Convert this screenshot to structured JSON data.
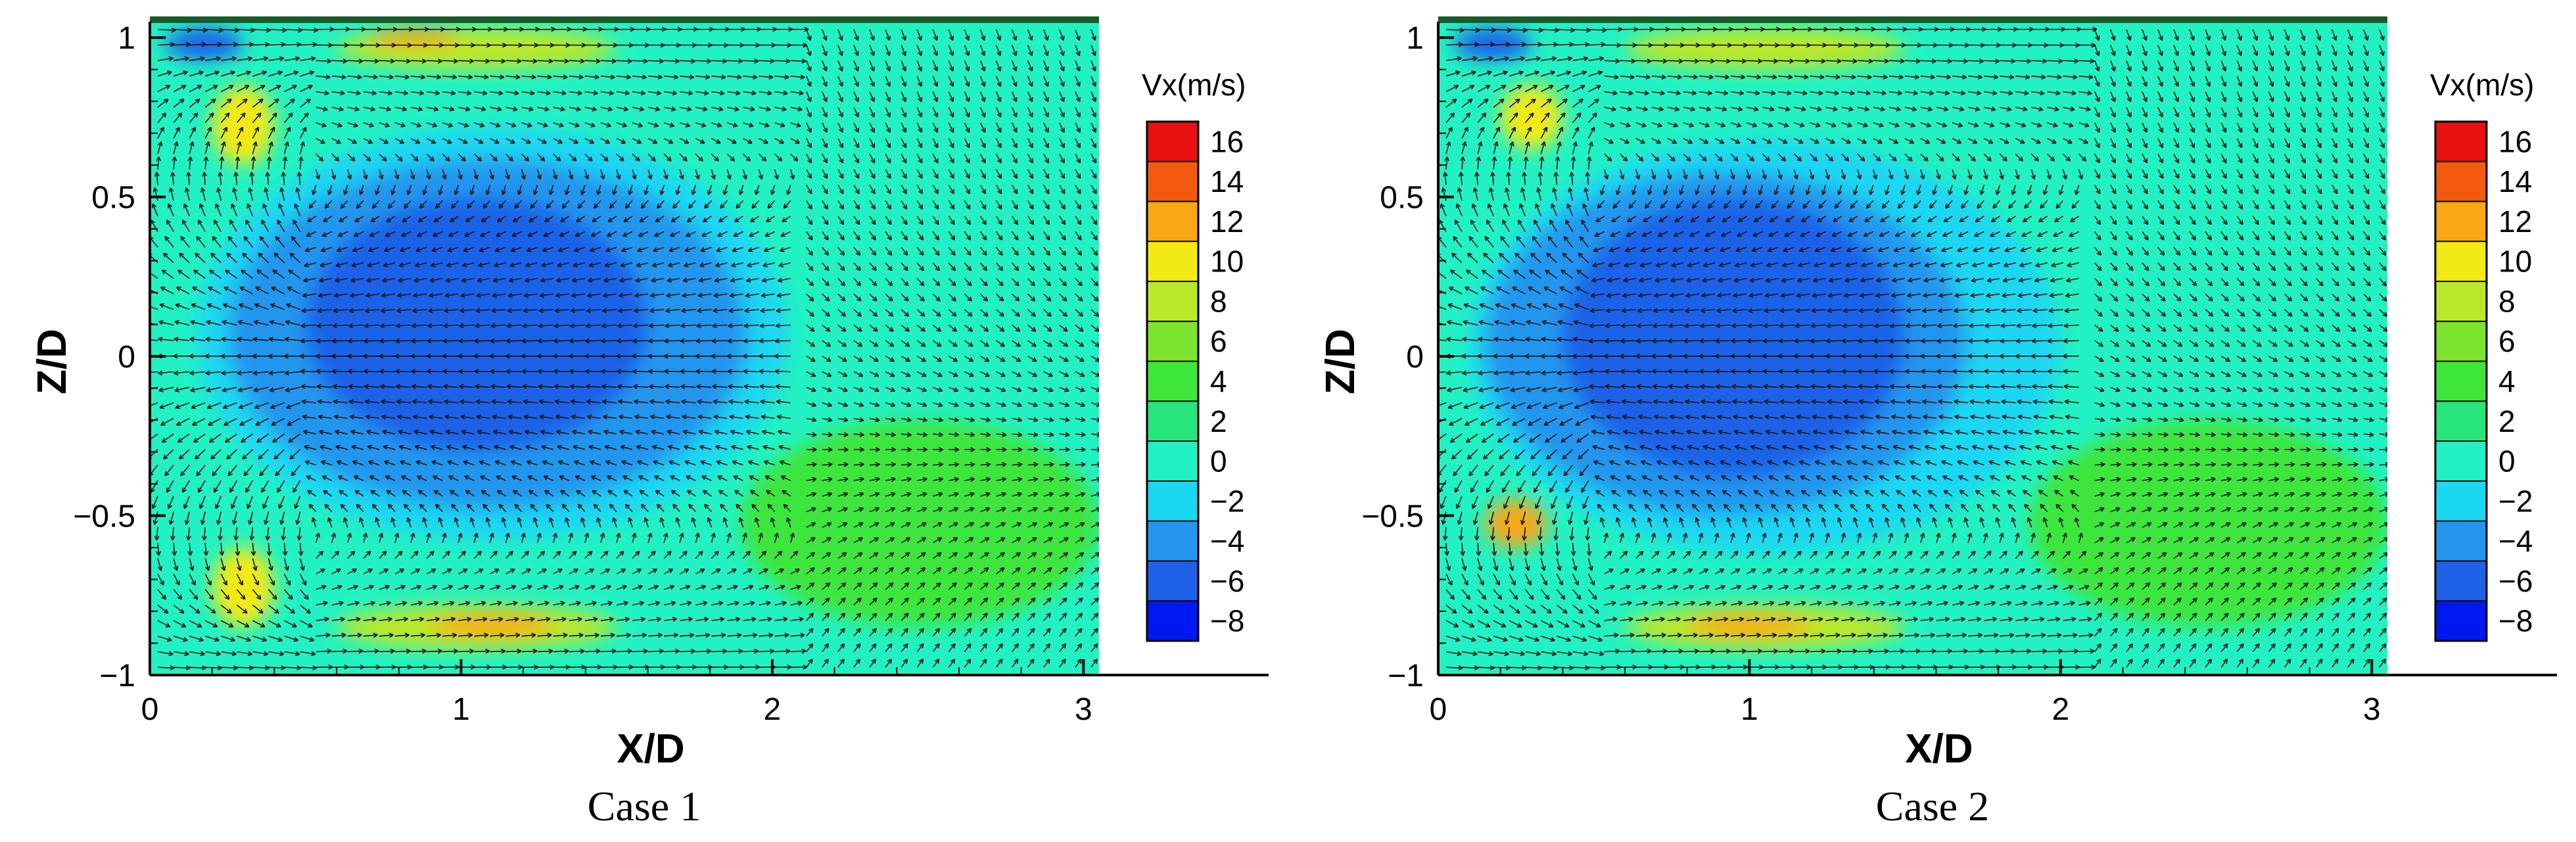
{
  "colorbar": {
    "title": "Vx(m/s)",
    "levels": [
      -8,
      -6,
      -4,
      -2,
      0,
      2,
      4,
      6,
      8,
      10,
      12,
      14,
      16
    ],
    "band_colors": [
      "#0018f0",
      "#1f62e8",
      "#2496ee",
      "#1ad7f2",
      "#22f2c3",
      "#28e57c",
      "#3ee63c",
      "#7ce42c",
      "#bbe82a",
      "#f2ea14",
      "#f8a814",
      "#f25a10",
      "#e81010"
    ],
    "ticks": [
      "16",
      "14",
      "12",
      "10",
      "8",
      "6",
      "4",
      "2",
      "0",
      "−2",
      "−4",
      "−6",
      "−8"
    ]
  },
  "chart_data": [
    {
      "type": "heatmap",
      "caption": "Case 1",
      "xlabel": "X/D",
      "ylabel": "Z/D",
      "xlim": [
        0,
        3.05
      ],
      "ylim": [
        -1,
        1.05
      ],
      "xticks": [
        0,
        1,
        2,
        3
      ],
      "xtick_labels": [
        "0",
        "1",
        "2",
        "3"
      ],
      "yticks": [
        -1,
        -0.5,
        0,
        0.5,
        1
      ],
      "ytick_labels": [
        "−1",
        "−0.5",
        "0",
        "0.5",
        "1"
      ],
      "field": {
        "background_vx": 1,
        "regions": [
          {
            "vx": -2,
            "x": [
              0.15,
              2.05
            ],
            "z": [
              -0.58,
              0.72
            ]
          },
          {
            "vx": -4,
            "x": [
              0.25,
              1.92
            ],
            "z": [
              -0.48,
              0.62
            ]
          },
          {
            "vx": -6,
            "x": [
              0.5,
              1.6
            ],
            "z": [
              -0.3,
              0.5
            ]
          },
          {
            "vx": 5,
            "x": [
              1.9,
              3.05
            ],
            "z": [
              -0.85,
              -0.2
            ]
          },
          {
            "vx": 8,
            "x": [
              0.6,
              1.5
            ],
            "z": [
              0.9,
              1.03
            ]
          },
          {
            "vx": 8,
            "x": [
              0.6,
              1.5
            ],
            "z": [
              -0.92,
              -0.78
            ]
          },
          {
            "vx": 12,
            "x": [
              0.7,
              1.0
            ],
            "z": [
              0.97,
              1.03
            ]
          },
          {
            "vx": 12,
            "x": [
              0.9,
              1.3
            ],
            "z": [
              -0.88,
              -0.81
            ]
          },
          {
            "vx": 10,
            "x": [
              0.2,
              0.4
            ],
            "z": [
              0.6,
              0.85
            ]
          },
          {
            "vx": 10,
            "x": [
              0.2,
              0.4
            ],
            "z": [
              -0.85,
              -0.6
            ]
          },
          {
            "vx": -6,
            "x": [
              0.05,
              0.3
            ],
            "z": [
              0.93,
              1.03
            ]
          }
        ]
      }
    },
    {
      "type": "heatmap",
      "caption": "Case 2",
      "xlabel": "X/D",
      "ylabel": "Z/D",
      "xlim": [
        0,
        3.05
      ],
      "ylim": [
        -1,
        1.05
      ],
      "xticks": [
        0,
        1,
        2,
        3
      ],
      "xtick_labels": [
        "0",
        "1",
        "2",
        "3"
      ],
      "yticks": [
        -1,
        -0.5,
        0,
        0.5,
        1
      ],
      "ytick_labels": [
        "−1",
        "−0.5",
        "0",
        "0.5",
        "1"
      ],
      "field": {
        "background_vx": 1,
        "regions": [
          {
            "vx": -2,
            "x": [
              0.1,
              2.0
            ],
            "z": [
              -0.62,
              0.68
            ]
          },
          {
            "vx": -4,
            "x": [
              0.15,
              1.7
            ],
            "z": [
              -0.5,
              0.58
            ]
          },
          {
            "vx": -6,
            "x": [
              0.4,
              1.5
            ],
            "z": [
              -0.38,
              0.5
            ]
          },
          {
            "vx": 5,
            "x": [
              1.9,
              3.05
            ],
            "z": [
              -0.85,
              -0.2
            ]
          },
          {
            "vx": 8,
            "x": [
              0.6,
              1.5
            ],
            "z": [
              0.9,
              1.03
            ]
          },
          {
            "vx": 8,
            "x": [
              0.6,
              1.5
            ],
            "z": [
              -0.92,
              -0.78
            ]
          },
          {
            "vx": 12,
            "x": [
              0.8,
              1.2
            ],
            "z": [
              -0.88,
              -0.81
            ]
          },
          {
            "vx": 12,
            "x": [
              0.15,
              0.35
            ],
            "z": [
              -0.6,
              -0.45
            ]
          },
          {
            "vx": 10,
            "x": [
              0.2,
              0.4
            ],
            "z": [
              0.65,
              0.85
            ]
          },
          {
            "vx": -6,
            "x": [
              0.05,
              0.3
            ],
            "z": [
              0.93,
              1.03
            ]
          }
        ]
      }
    }
  ]
}
